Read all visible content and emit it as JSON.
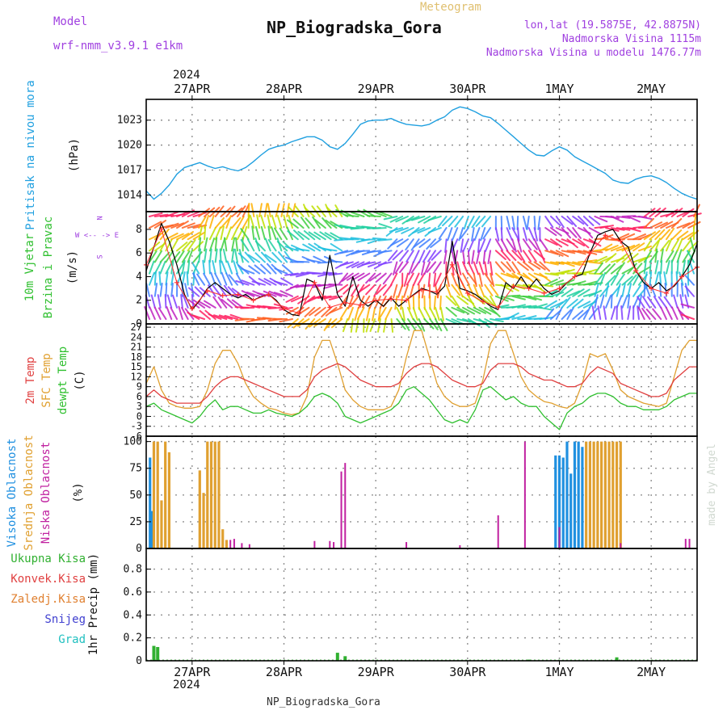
{
  "header": {
    "model_label": "Model",
    "model_name": "wrf-nmm_v3.9.1  e1km",
    "title": "NP_Biogradska_Gora",
    "meteogram": "Meteogram",
    "lonlat": "lon,lat (19.5875E, 42.8875N)",
    "elevation": "Nadmorska Visina 1115m",
    "model_elevation": "Nadmorska Visina u modelu 1476.77m",
    "year_top": "2024",
    "year_bottom": "2024",
    "footer": "NP_Biogradska_Gora",
    "credit": "made by Angel",
    "colors": {
      "purple": "#a040e0",
      "orange": "#e0a020",
      "pressure": "#20a0e0",
      "temp": "#e04040",
      "sfc": "#e0a030",
      "dew": "#30c030"
    }
  },
  "chart_data": [
    {
      "type": "line",
      "panel": "pressure",
      "side_label": "Pritisak na nivou mora",
      "ylabel": "(hPa)",
      "yticks": [
        1014,
        1017,
        1020,
        1023
      ],
      "ylim": [
        1012,
        1025.5
      ],
      "xlim": [
        0,
        144
      ],
      "xtick_labels": [
        "27APR",
        "28APR",
        "29APR",
        "30APR",
        "1MAY",
        "2MAY"
      ],
      "xtick_positions": [
        12,
        36,
        60,
        84,
        108,
        132
      ],
      "series": [
        {
          "color": "#20a0e0",
          "x": [
            0,
            2,
            4,
            6,
            8,
            10,
            12,
            14,
            16,
            18,
            20,
            22,
            24,
            26,
            28,
            30,
            32,
            34,
            36,
            38,
            40,
            42,
            44,
            46,
            48,
            50,
            52,
            54,
            56,
            58,
            60,
            62,
            64,
            66,
            68,
            70,
            72,
            74,
            76,
            78,
            80,
            82,
            84,
            86,
            88,
            90,
            92,
            94,
            96,
            98,
            100,
            102,
            104,
            106,
            108,
            110,
            112,
            114,
            116,
            118,
            120,
            122,
            124,
            126,
            128,
            130,
            132,
            134,
            136,
            138,
            140,
            142,
            144
          ],
          "values": [
            1014.5,
            1013.5,
            1014.2,
            1015.2,
            1016.5,
            1017.3,
            1017.6,
            1017.9,
            1017.5,
            1017.2,
            1017.4,
            1017.1,
            1016.9,
            1017.3,
            1018.0,
            1018.8,
            1019.5,
            1019.8,
            1020.0,
            1020.4,
            1020.7,
            1021.0,
            1021.0,
            1020.6,
            1019.8,
            1019.5,
            1020.2,
            1021.3,
            1022.5,
            1022.9,
            1023.0,
            1023.0,
            1023.2,
            1022.8,
            1022.5,
            1022.4,
            1022.3,
            1022.5,
            1023.0,
            1023.4,
            1024.2,
            1024.6,
            1024.4,
            1024.0,
            1023.5,
            1023.3,
            1022.6,
            1021.8,
            1021.0,
            1020.2,
            1019.4,
            1018.8,
            1018.7,
            1019.3,
            1019.8,
            1019.4,
            1018.6,
            1018.1,
            1017.6,
            1017.1,
            1016.6,
            1015.8,
            1015.5,
            1015.4,
            1015.9,
            1016.2,
            1016.3,
            1016.0,
            1015.5,
            1014.8,
            1014.2,
            1013.8,
            1013.5
          ]
        }
      ]
    },
    {
      "type": "line",
      "panel": "wind",
      "side_label_1": "10m Vjetar",
      "side_label_2": "Brzina i Pravac",
      "ylabel": "(m/s)",
      "yticks": [
        0,
        2,
        4,
        6,
        8
      ],
      "ylim": [
        0,
        9.5
      ],
      "xlim": [
        0,
        144
      ],
      "compass": [
        "N",
        "^",
        "|",
        "W <-- -> E",
        "|",
        "v",
        "S"
      ],
      "series": [
        {
          "name": "speed",
          "color": "#000000",
          "x": [
            0,
            2,
            4,
            6,
            8,
            10,
            12,
            14,
            16,
            18,
            20,
            22,
            24,
            26,
            28,
            30,
            32,
            34,
            36,
            38,
            40,
            42,
            44,
            46,
            48,
            50,
            52,
            54,
            56,
            58,
            60,
            62,
            64,
            66,
            68,
            70,
            72,
            74,
            76,
            78,
            80,
            82,
            84,
            86,
            88,
            90,
            92,
            94,
            96,
            98,
            100,
            102,
            104,
            106,
            108,
            110,
            112,
            114,
            116,
            118,
            120,
            122,
            124,
            126,
            128,
            130,
            132,
            134,
            136,
            138,
            140,
            142,
            144
          ],
          "values": [
            4.5,
            6.5,
            8.5,
            7.0,
            5.0,
            2.5,
            1.2,
            2.0,
            3.0,
            3.5,
            3.0,
            2.5,
            2.2,
            2.5,
            2.0,
            2.3,
            2.5,
            2.0,
            1.2,
            0.8,
            0.7,
            3.8,
            3.5,
            2.0,
            5.8,
            2.5,
            1.5,
            4.0,
            2.0,
            1.5,
            2.0,
            1.5,
            2.2,
            1.5,
            2.0,
            2.5,
            3.0,
            2.8,
            2.5,
            3.2,
            7.0,
            3.0,
            2.8,
            2.5,
            2.0,
            1.5,
            1.2,
            3.5,
            3.0,
            4.0,
            3.0,
            3.8,
            3.0,
            2.5,
            2.8,
            3.5,
            4.0,
            4.2,
            6.0,
            7.5,
            7.8,
            8.0,
            7.0,
            6.5,
            4.5,
            3.5,
            3.0,
            3.5,
            2.8,
            3.2,
            4.0,
            5.0,
            6.8
          ]
        },
        {
          "name": "gust",
          "color": "#ff3030",
          "x": [
            0,
            4,
            8,
            12,
            16,
            20,
            24,
            28,
            32,
            36,
            40,
            44,
            48,
            52,
            56,
            60,
            64,
            68,
            72,
            76,
            80,
            84,
            88,
            92,
            96,
            100,
            104,
            108,
            112,
            116,
            120,
            124,
            128,
            132,
            136,
            140,
            144
          ],
          "values": [
            5.0,
            8.0,
            3.5,
            1.3,
            2.8,
            2.4,
            2.5,
            2.0,
            2.5,
            1.3,
            0.9,
            3.5,
            1.4,
            1.8,
            1.6,
            2.0,
            2.1,
            2.0,
            2.9,
            2.7,
            5.0,
            2.6,
            1.9,
            1.4,
            3.2,
            3.0,
            2.6,
            3.0,
            4.0,
            6.0,
            7.5,
            7.0,
            4.5,
            3.0,
            2.6,
            4.0,
            4.8
          ]
        }
      ]
    },
    {
      "type": "line",
      "panel": "temperature",
      "side_label_1": "2m Temp",
      "side_label_2": "SFC Temp",
      "side_label_3": "dewpt Temp",
      "ylabel": "(C)",
      "yticks": [
        -6,
        -3,
        0,
        3,
        6,
        9,
        12,
        15,
        18,
        21,
        24,
        27
      ],
      "ylim": [
        -6,
        28
      ],
      "xlim": [
        0,
        144
      ],
      "series": [
        {
          "name": "2m Temp",
          "color": "#e04040",
          "x": [
            0,
            2,
            4,
            6,
            8,
            10,
            12,
            14,
            16,
            18,
            20,
            22,
            24,
            26,
            28,
            30,
            32,
            34,
            36,
            38,
            40,
            42,
            44,
            46,
            48,
            50,
            52,
            54,
            56,
            58,
            60,
            62,
            64,
            66,
            68,
            70,
            72,
            74,
            76,
            78,
            80,
            82,
            84,
            86,
            88,
            90,
            92,
            94,
            96,
            98,
            100,
            102,
            104,
            106,
            108,
            110,
            112,
            114,
            116,
            118,
            120,
            122,
            124,
            126,
            128,
            130,
            132,
            134,
            136,
            138,
            140,
            142,
            144
          ],
          "values": [
            6,
            8,
            6,
            5,
            4,
            4,
            4,
            4,
            6,
            9,
            11,
            12,
            12,
            11,
            10,
            9,
            8,
            7,
            6,
            6,
            6,
            8,
            12,
            14,
            15,
            16,
            15,
            13,
            11,
            10,
            9,
            9,
            9,
            10,
            13,
            15,
            16,
            16,
            15,
            13,
            11,
            10,
            9,
            9,
            10,
            14,
            16,
            16,
            16,
            15,
            13,
            12,
            11,
            11,
            10,
            9,
            9,
            10,
            13,
            15,
            14,
            13,
            10,
            9,
            8,
            7,
            6,
            6,
            7,
            11,
            13,
            15,
            15
          ]
        },
        {
          "name": "SFC Temp",
          "color": "#e0a030",
          "x": [
            0,
            2,
            4,
            6,
            8,
            10,
            12,
            14,
            16,
            18,
            20,
            22,
            24,
            26,
            28,
            30,
            32,
            34,
            36,
            38,
            40,
            42,
            44,
            46,
            48,
            50,
            52,
            54,
            56,
            58,
            60,
            62,
            64,
            66,
            68,
            70,
            72,
            74,
            76,
            78,
            80,
            82,
            84,
            86,
            88,
            90,
            92,
            94,
            96,
            98,
            100,
            102,
            104,
            106,
            108,
            110,
            112,
            114,
            116,
            118,
            120,
            122,
            124,
            126,
            128,
            130,
            132,
            134,
            136,
            138,
            140,
            142,
            144
          ],
          "values": [
            10,
            15,
            8,
            4,
            3,
            2.5,
            2.5,
            3,
            8,
            16,
            20,
            20,
            16,
            10,
            6,
            4,
            2.5,
            2,
            1,
            0.5,
            1,
            6,
            18,
            23,
            23,
            16,
            8,
            5,
            3,
            2,
            2,
            2,
            3,
            8,
            18,
            26,
            26,
            18,
            10,
            6,
            4,
            3,
            3,
            4,
            11,
            22,
            26,
            26,
            19,
            12,
            8,
            6,
            4.5,
            4,
            3,
            2.5,
            4,
            10,
            19,
            18,
            19,
            14,
            8,
            6,
            5,
            4,
            3.5,
            3,
            4,
            12,
            20,
            23,
            23
          ]
        },
        {
          "name": "dewpt Temp",
          "color": "#30c030",
          "x": [
            0,
            2,
            4,
            6,
            8,
            10,
            12,
            14,
            16,
            18,
            20,
            22,
            24,
            26,
            28,
            30,
            32,
            34,
            36,
            38,
            40,
            42,
            44,
            46,
            48,
            50,
            52,
            54,
            56,
            58,
            60,
            62,
            64,
            66,
            68,
            70,
            72,
            74,
            76,
            78,
            80,
            82,
            84,
            86,
            88,
            90,
            92,
            94,
            96,
            98,
            100,
            102,
            104,
            106,
            108,
            110,
            112,
            114,
            116,
            118,
            120,
            122,
            124,
            126,
            128,
            130,
            132,
            134,
            136,
            138,
            140,
            142,
            144
          ],
          "values": [
            3,
            4,
            2,
            1,
            0,
            -1,
            -2,
            0,
            3,
            5,
            2,
            3,
            3,
            2,
            1,
            1,
            2,
            1,
            0.5,
            0,
            1,
            3,
            6,
            7,
            6,
            4,
            0,
            -1,
            -2,
            -1,
            0,
            1,
            2,
            4,
            8,
            9,
            7,
            5,
            2,
            -1,
            -2,
            -1,
            -2,
            2,
            8,
            9,
            7,
            5,
            6,
            4,
            3,
            3,
            0,
            -2,
            -4,
            1,
            3,
            4,
            6,
            7,
            7,
            6,
            4,
            3,
            3,
            2,
            2,
            2,
            3,
            5,
            6,
            7,
            7
          ]
        }
      ]
    },
    {
      "type": "bar",
      "panel": "clouds",
      "side_label_1": "Visoka Oblacnost",
      "side_label_2": "Srednja Oblacnost",
      "side_label_3": "Niska Oblacnost",
      "ylabel": "(%)",
      "yticks": [
        0,
        25,
        50,
        75,
        100
      ],
      "ylim": [
        0,
        105
      ],
      "xlim": [
        0,
        144
      ],
      "series": [
        {
          "name": "Visoka Oblacnost",
          "color": "#2090e0",
          "x": [
            1,
            1.5,
            107,
            108,
            109,
            110,
            111,
            112,
            113,
            114
          ],
          "values": [
            85,
            35,
            87,
            87,
            85,
            100,
            70,
            100,
            100,
            95
          ]
        },
        {
          "name": "Srednja Oblacnost",
          "color": "#e0a030",
          "x": [
            2,
            3,
            4,
            5,
            6,
            14,
            15,
            16,
            17,
            18,
            19,
            20,
            21,
            115,
            116,
            117,
            118,
            119,
            120,
            121,
            122,
            123,
            124
          ],
          "values": [
            100,
            100,
            45,
            100,
            90,
            73,
            52,
            100,
            100,
            100,
            100,
            18,
            8,
            100,
            100,
            100,
            100,
            100,
            100,
            100,
            100,
            100,
            100
          ]
        },
        {
          "name": "Niska Oblacnost",
          "color": "#c020a0",
          "x": [
            22,
            23,
            25,
            27,
            44,
            48,
            49,
            51,
            52,
            68,
            82,
            92,
            99,
            108,
            124,
            141,
            142
          ],
          "values": [
            8,
            9,
            5,
            4,
            7,
            7,
            6,
            72,
            80,
            6,
            3,
            31,
            100,
            20,
            5,
            9,
            9
          ]
        }
      ]
    },
    {
      "type": "bar",
      "panel": "precip",
      "side_labels": [
        "Ukupna Kisa",
        "Konvek.Kisa",
        "Zaledj.Kisa",
        "Snijeg",
        "Grad"
      ],
      "side_label_colors": [
        "#30b030",
        "#e04040",
        "#e08030",
        "#4040d0",
        "#20c0c0"
      ],
      "ylabel": "1hr Precip (mm)",
      "yticks": [
        0,
        0.2,
        0.4,
        0.6,
        0.8
      ],
      "ylim": [
        0,
        0.98
      ],
      "xlim": [
        0,
        144
      ],
      "series": [
        {
          "name": "Ukupna Kisa",
          "color": "#30b030",
          "x": [
            2,
            3,
            50,
            52,
            100,
            123
          ],
          "values": [
            0.13,
            0.12,
            0.07,
            0.04,
            0.01,
            0.03
          ]
        }
      ]
    }
  ]
}
